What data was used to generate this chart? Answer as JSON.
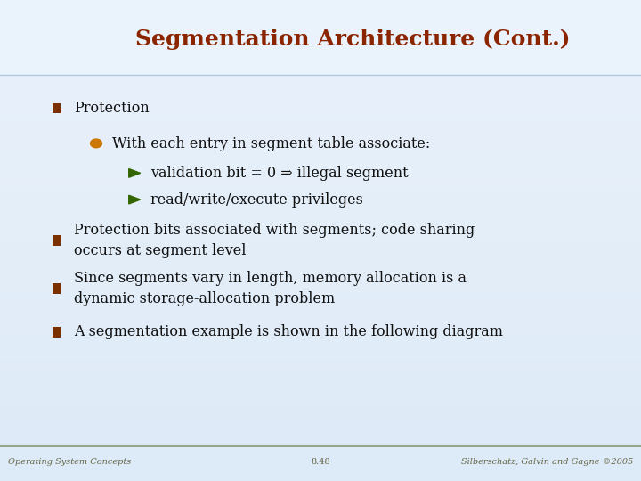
{
  "title": "Segmentation Architecture (Cont.)",
  "title_color": "#8B2500",
  "title_fontsize": 18,
  "bg_color": "#ddeaf7",
  "bg_color_light": "#eaf2fb",
  "header_bg": "#ddeaf7",
  "bullet1_marker_color": "#7B3000",
  "bullet2_marker_color": "#CC7700",
  "bullet3_marker_color": "#336600",
  "text_color": "#111111",
  "footer_text_left": "Operating System Concepts",
  "footer_text_mid": "8.48",
  "footer_text_right": "Silberschatz, Galvin and Gagne ©2005",
  "footer_color": "#666644",
  "items": [
    {
      "level": 1,
      "text": "Protection",
      "marker": "square"
    },
    {
      "level": 2,
      "text": "With each entry in segment table associate:",
      "marker": "circle"
    },
    {
      "level": 3,
      "text": "validation bit = 0 ⇒ illegal segment",
      "marker": "triangle"
    },
    {
      "level": 3,
      "text": "read/write/execute privileges",
      "marker": "triangle"
    },
    {
      "level": 1,
      "text": "Protection bits associated with segments; code sharing\noccurs at segment level",
      "marker": "square"
    },
    {
      "level": 1,
      "text": "Since segments vary in length, memory allocation is a\ndynamic storage-allocation problem",
      "marker": "square"
    },
    {
      "level": 1,
      "text": "A segmentation example is shown in the following diagram",
      "marker": "square"
    }
  ]
}
